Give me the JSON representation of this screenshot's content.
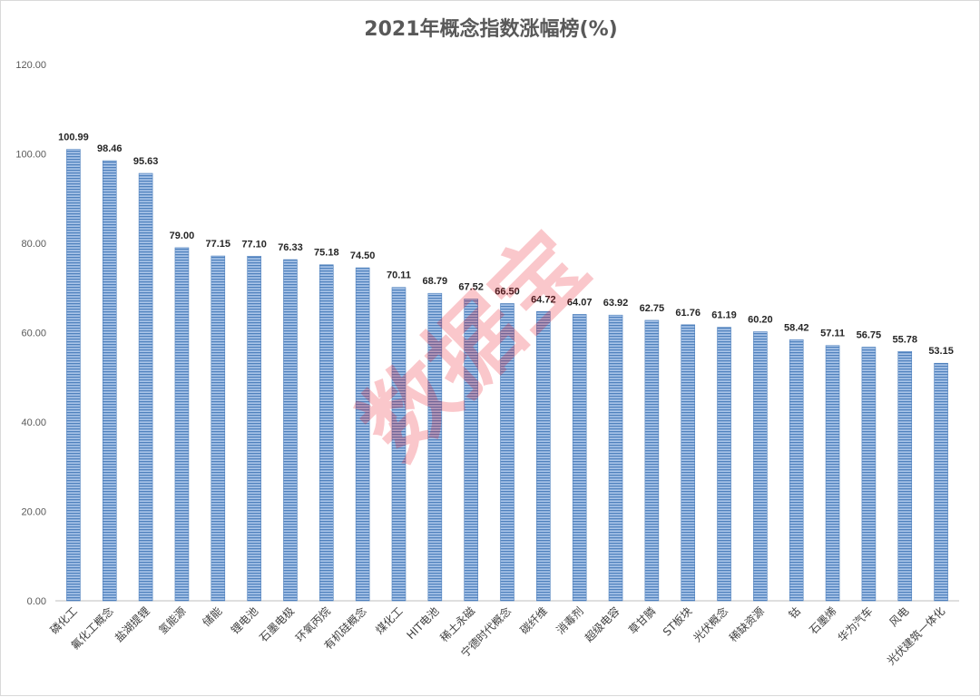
{
  "chart_data": {
    "type": "bar",
    "title": "2021年概念指数涨幅榜(%)",
    "xlabel": "",
    "ylabel": "",
    "ylim": [
      0,
      120
    ],
    "yticks": [
      "0.00",
      "20.00",
      "40.00",
      "60.00",
      "80.00",
      "100.00",
      "120.00"
    ],
    "grid": false,
    "legend": "none",
    "categories": [
      "磷化工",
      "氟化工概念",
      "盐湖提锂",
      "氢能源",
      "储能",
      "锂电池",
      "石墨电极",
      "环氧丙烷",
      "有机硅概念",
      "煤化工",
      "HIT电池",
      "稀土永磁",
      "宁德时代概念",
      "碳纤维",
      "消毒剂",
      "超级电容",
      "草甘膦",
      "ST板块",
      "光伏概念",
      "稀缺资源",
      "钴",
      "石墨烯",
      "华为汽车",
      "风电",
      "光伏建筑一体化"
    ],
    "values": [
      100.99,
      98.46,
      95.63,
      79.0,
      77.15,
      77.1,
      76.33,
      75.18,
      74.5,
      70.11,
      68.79,
      67.52,
      66.5,
      64.72,
      64.07,
      63.92,
      62.75,
      61.76,
      61.19,
      60.2,
      58.42,
      57.11,
      56.75,
      55.78,
      53.15
    ],
    "value_labels": [
      "100.99",
      "98.46",
      "95.63",
      "79.00",
      "77.15",
      "77.10",
      "76.33",
      "75.18",
      "74.50",
      "70.11",
      "68.79",
      "67.52",
      "66.50",
      "64.72",
      "64.07",
      "63.92",
      "62.75",
      "61.76",
      "61.19",
      "60.20",
      "58.42",
      "57.11",
      "56.75",
      "55.78",
      "53.15"
    ],
    "colors": {
      "bar_fill": "#8eb4e3",
      "bar_stripe": "#4f81bd",
      "axis": "#bfbfbf",
      "text": "#595959"
    }
  },
  "watermark": "数据宝"
}
